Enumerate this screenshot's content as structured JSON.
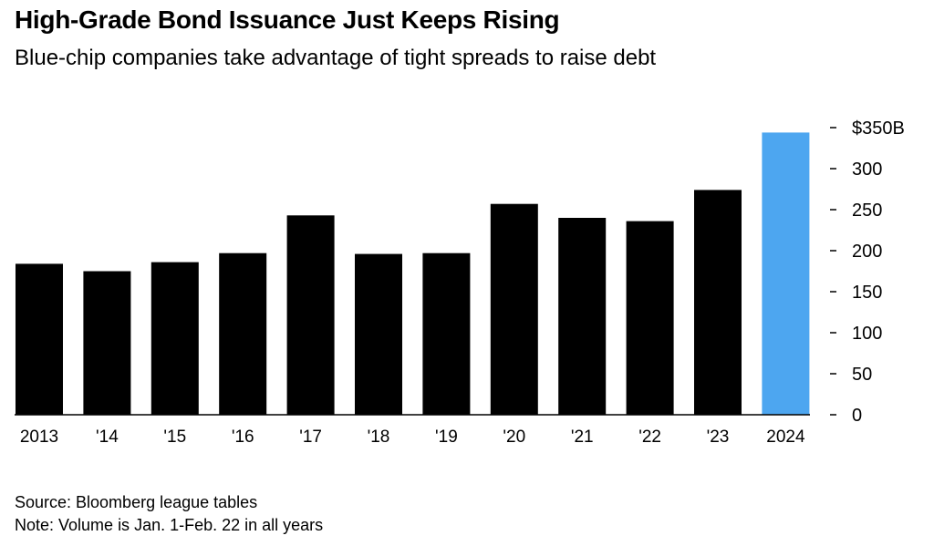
{
  "title": "High-Grade Bond Issuance Just Keeps Rising",
  "subtitle": "Blue-chip companies take advantage of tight spreads to raise debt",
  "source": "Source: Bloomberg league tables",
  "note": "Note: Volume is Jan. 1-Feb. 22 in all years",
  "colors": {
    "bar": "#000000",
    "highlight": "#4da6f0",
    "text": "#000000"
  },
  "chart_data": {
    "type": "bar",
    "categories": [
      "2013",
      "'14",
      "'15",
      "'16",
      "'17",
      "'18",
      "'19",
      "'20",
      "'21",
      "'22",
      "'23",
      "2024"
    ],
    "values": [
      184,
      175,
      186,
      197,
      243,
      196,
      197,
      257,
      240,
      236,
      274,
      344
    ],
    "highlight_index": 11,
    "ylim": [
      0,
      350
    ],
    "yticks": [
      0,
      50,
      100,
      150,
      200,
      250,
      300,
      350
    ],
    "ytick_labels": [
      "0",
      "50",
      "100",
      "150",
      "200",
      "250",
      "300",
      "$350B"
    ],
    "y_axis_side": "right",
    "grid": false,
    "legend": "none"
  }
}
